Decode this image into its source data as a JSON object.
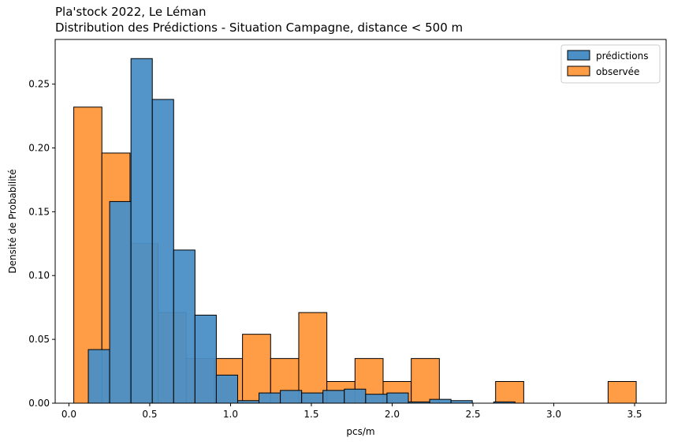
{
  "chart_data": {
    "type": "bar",
    "title": "Pla'stock 2022, Le Léman",
    "subtitle": "Distribution des Prédictions - Situation Campagne, distance < 500 m",
    "xlabel": "pcs/m",
    "ylabel": "Densité de Probabilité",
    "xlim": [
      -0.085,
      3.695
    ],
    "ylim": [
      0,
      0.285
    ],
    "xticks": [
      0.0,
      0.5,
      1.0,
      1.5,
      2.0,
      2.5,
      3.0,
      3.5
    ],
    "xtick_labels": [
      "0.0",
      "0.5",
      "1.0",
      "1.5",
      "2.0",
      "2.5",
      "3.0",
      "3.5"
    ],
    "yticks": [
      0.0,
      0.05,
      0.1,
      0.15,
      0.2,
      0.25
    ],
    "ytick_labels": [
      "0.00",
      "0.05",
      "0.10",
      "0.15",
      "0.20",
      "0.25"
    ],
    "grid": false,
    "legend_position": "top-right",
    "series": [
      {
        "name": "observée",
        "color": "#ff9c46",
        "bin_edges": [
          0.03,
          0.204,
          0.378,
          0.552,
          0.726,
          0.9,
          1.074,
          1.248,
          1.422,
          1.596,
          1.77,
          1.944,
          2.118,
          2.292,
          2.466,
          2.64,
          2.814,
          2.988,
          3.162,
          3.336,
          3.51
        ],
        "values": [
          0.232,
          0.196,
          0.125,
          0.071,
          0.035,
          0.035,
          0.054,
          0.035,
          0.071,
          0.017,
          0.035,
          0.017,
          0.035,
          0.0,
          0.0,
          0.017,
          0.0,
          0.0,
          0.0,
          0.017
        ]
      },
      {
        "name": "prédictions",
        "color": "#4a8fc6",
        "bin_edges": [
          0.12,
          0.252,
          0.384,
          0.516,
          0.648,
          0.78,
          0.912,
          1.044,
          1.176,
          1.308,
          1.44,
          1.572,
          1.704,
          1.836,
          1.968,
          2.1,
          2.232,
          2.364,
          2.496,
          2.628,
          2.76
        ],
        "values": [
          0.042,
          0.158,
          0.27,
          0.238,
          0.12,
          0.069,
          0.022,
          0.002,
          0.008,
          0.01,
          0.008,
          0.01,
          0.011,
          0.007,
          0.008,
          0.001,
          0.003,
          0.002,
          0.0,
          0.001
        ]
      }
    ]
  }
}
